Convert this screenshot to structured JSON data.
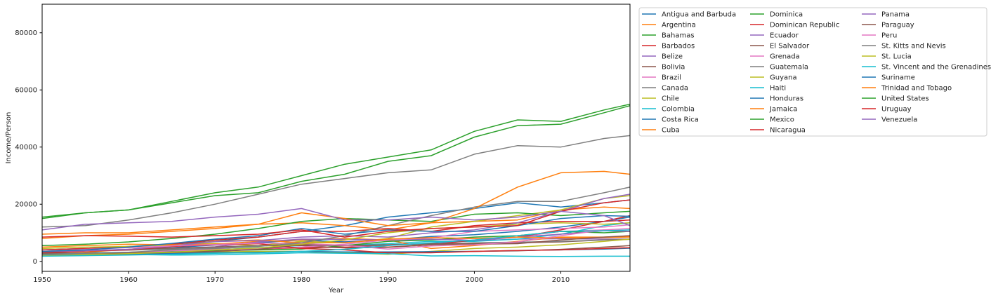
{
  "chart_data": {
    "type": "line",
    "xlabel": "Year",
    "ylabel": "Income/Person",
    "xlim": [
      1950,
      2018
    ],
    "ylim": [
      -3500,
      90000
    ],
    "xticks": [
      1950,
      1960,
      1970,
      1980,
      1990,
      2000,
      2010
    ],
    "yticks": [
      0,
      20000,
      40000,
      60000,
      80000
    ],
    "grid": false,
    "legend_position": "outside-right",
    "legend_columns": 3,
    "years": [
      1950,
      1955,
      1960,
      1965,
      1970,
      1975,
      1980,
      1985,
      1990,
      1995,
      2000,
      2005,
      2010,
      2015,
      2018
    ],
    "series": [
      {
        "name": "Antigua and Barbuda",
        "color": "#1f77b4",
        "values": [
          4000,
          4500,
          5200,
          6000,
          7000,
          8500,
          10500,
          12500,
          15500,
          17000,
          18500,
          20500,
          19000,
          20500,
          21500
        ]
      },
      {
        "name": "Argentina",
        "color": "#ff7f0e",
        "values": [
          9500,
          10000,
          10000,
          11000,
          12000,
          13000,
          13500,
          12500,
          11000,
          13500,
          14000,
          14500,
          18000,
          19000,
          18500
        ]
      },
      {
        "name": "Bahamas",
        "color": "#2ca02c",
        "values": [
          15500,
          17000,
          18000,
          21000,
          24000,
          26000,
          30000,
          34000,
          36500,
          39000,
          45500,
          49500,
          49000,
          53000,
          55000
        ]
      },
      {
        "name": "Barbados",
        "color": "#d62728",
        "values": [
          4000,
          4500,
          5000,
          6000,
          7500,
          8500,
          10500,
          10500,
          11500,
          10500,
          12500,
          13500,
          14000,
          14000,
          14500
        ]
      },
      {
        "name": "Belize",
        "color": "#9467bd",
        "values": [
          2500,
          2700,
          2900,
          3200,
          3600,
          4200,
          5000,
          4800,
          5800,
          6400,
          7200,
          7800,
          7900,
          7800,
          7800
        ]
      },
      {
        "name": "Bolivia",
        "color": "#8c564b",
        "values": [
          3000,
          2800,
          2600,
          2800,
          3100,
          3400,
          3500,
          3000,
          3100,
          3300,
          3500,
          3700,
          4200,
          5000,
          5500
        ]
      },
      {
        "name": "Brazil",
        "color": "#e377c2",
        "values": [
          2000,
          2500,
          3000,
          3300,
          4300,
          5500,
          7000,
          7000,
          7300,
          7500,
          8000,
          8500,
          10500,
          11000,
          10500
        ]
      },
      {
        "name": "Canada",
        "color": "#7f7f7f",
        "values": [
          12000,
          12500,
          14500,
          17000,
          20000,
          23500,
          27000,
          29000,
          31000,
          32000,
          37500,
          40500,
          40000,
          43000,
          44000
        ]
      },
      {
        "name": "Chile",
        "color": "#bcbd22",
        "values": [
          4500,
          5000,
          5200,
          5700,
          6300,
          5500,
          7000,
          6500,
          8000,
          12000,
          14000,
          16000,
          18000,
          22000,
          23000
        ]
      },
      {
        "name": "Colombia",
        "color": "#17becf",
        "values": [
          2700,
          3000,
          3200,
          3500,
          4000,
          4800,
          5500,
          5600,
          6200,
          7000,
          7000,
          7800,
          9500,
          12500,
          13500
        ]
      },
      {
        "name": "Costa Rica",
        "color": "#1f77b4",
        "values": [
          3200,
          3800,
          4200,
          4800,
          5700,
          6500,
          7500,
          6800,
          7500,
          8700,
          9300,
          10500,
          12000,
          14000,
          15500
        ]
      },
      {
        "name": "Cuba",
        "color": "#ff7f0e",
        "values": [
          5000,
          5500,
          6000,
          5800,
          6000,
          7000,
          7500,
          8000,
          7500,
          4500,
          5500,
          7000,
          8500,
          8500,
          8800
        ]
      },
      {
        "name": "Dominica",
        "color": "#2ca02c",
        "values": [
          2500,
          2700,
          3000,
          3300,
          3700,
          4000,
          4300,
          5500,
          7000,
          7500,
          8500,
          9000,
          10500,
          10000,
          10500
        ]
      },
      {
        "name": "Dominican Republic",
        "color": "#d62728",
        "values": [
          2000,
          2300,
          2700,
          2800,
          3500,
          4300,
          4800,
          5000,
          5000,
          5800,
          7500,
          8500,
          11000,
          14000,
          16000
        ]
      },
      {
        "name": "Ecuador",
        "color": "#9467bd",
        "values": [
          3500,
          3800,
          4200,
          4600,
          5100,
          6800,
          7800,
          7700,
          7500,
          7800,
          7300,
          8500,
          9500,
          10700,
          10500
        ]
      },
      {
        "name": "El Salvador",
        "color": "#8c564b",
        "values": [
          3500,
          3800,
          4000,
          4600,
          5000,
          5500,
          5500,
          4700,
          4900,
          5800,
          6200,
          6500,
          6800,
          7500,
          7800
        ]
      },
      {
        "name": "Grenada",
        "color": "#e377c2",
        "values": [
          2500,
          2800,
          3200,
          3700,
          4100,
          4400,
          5000,
          6000,
          7500,
          8200,
          10500,
          11000,
          11500,
          12000,
          12800
        ]
      },
      {
        "name": "Guatemala",
        "color": "#7f7f7f",
        "values": [
          3500,
          3700,
          3900,
          4300,
          4800,
          5400,
          6100,
          5500,
          5600,
          6100,
          6500,
          6700,
          7000,
          7500,
          7700
        ]
      },
      {
        "name": "Guyana",
        "color": "#bcbd22",
        "values": [
          2500,
          2700,
          3000,
          3000,
          3300,
          3500,
          3500,
          3000,
          2500,
          3500,
          4500,
          5000,
          5800,
          7000,
          7800
        ]
      },
      {
        "name": "Haiti",
        "color": "#17becf",
        "values": [
          2200,
          2400,
          2400,
          2200,
          2300,
          2600,
          3000,
          2800,
          2700,
          1900,
          2000,
          1800,
          1700,
          1800,
          1800
        ]
      },
      {
        "name": "Honduras",
        "color": "#1f77b4",
        "values": [
          2200,
          2300,
          2500,
          2700,
          3000,
          3100,
          3500,
          3300,
          3300,
          3400,
          3500,
          3800,
          4000,
          4300,
          4600
        ]
      },
      {
        "name": "Jamaica",
        "color": "#ff7f0e",
        "values": [
          2500,
          3200,
          4200,
          5500,
          7000,
          7500,
          6500,
          6500,
          7800,
          8300,
          8000,
          8500,
          8200,
          8300,
          8500
        ]
      },
      {
        "name": "Mexico",
        "color": "#2ca02c",
        "values": [
          5500,
          6000,
          6800,
          8000,
          9500,
          11500,
          14000,
          15000,
          14500,
          14000,
          16500,
          17000,
          16000,
          17000,
          17500
        ]
      },
      {
        "name": "Nicaragua",
        "color": "#d62728",
        "values": [
          3000,
          3600,
          4000,
          5200,
          5800,
          6200,
          4500,
          4000,
          3000,
          3000,
          3500,
          3800,
          4000,
          4500,
          4800
        ]
      },
      {
        "name": "Panama",
        "color": "#9467bd",
        "values": [
          3500,
          3700,
          4200,
          5400,
          6900,
          7300,
          8500,
          9000,
          8500,
          10000,
          11000,
          13500,
          17500,
          22000,
          23500
        ]
      },
      {
        "name": "Paraguay",
        "color": "#8c564b",
        "values": [
          2800,
          2900,
          2900,
          3100,
          3500,
          4200,
          5800,
          5500,
          5800,
          6200,
          6000,
          6200,
          7500,
          8500,
          9000
        ]
      },
      {
        "name": "Peru",
        "color": "#e377c2",
        "values": [
          3500,
          4200,
          4800,
          5400,
          5900,
          6400,
          6300,
          5600,
          4300,
          5400,
          5800,
          6800,
          9000,
          11000,
          11500
        ]
      },
      {
        "name": "St. Kitts and Nevis",
        "color": "#7f7f7f",
        "values": [
          2500,
          2800,
          3200,
          4000,
          4500,
          5200,
          6500,
          9000,
          12500,
          16000,
          19000,
          21000,
          21000,
          24000,
          26000
        ]
      },
      {
        "name": "St. Lucia",
        "color": "#bcbd22",
        "values": [
          2000,
          2300,
          2700,
          3200,
          4000,
          4700,
          6000,
          7500,
          10000,
          11500,
          12000,
          13000,
          13500,
          13000,
          13500
        ]
      },
      {
        "name": "St. Vincent and the Grenadines",
        "color": "#17becf",
        "values": [
          1800,
          2000,
          2200,
          2500,
          2800,
          3000,
          3500,
          4200,
          5500,
          6500,
          7500,
          9000,
          10500,
          10700,
          11000
        ]
      },
      {
        "name": "Suriname",
        "color": "#1f77b4",
        "values": [
          3500,
          4000,
          5000,
          6300,
          7800,
          9000,
          11500,
          9500,
          11000,
          10500,
          10500,
          12500,
          15000,
          16000,
          15800
        ]
      },
      {
        "name": "Trinidad and Tobago",
        "color": "#ff7f0e",
        "values": [
          8000,
          9000,
          9500,
          10500,
          11500,
          13000,
          17000,
          15000,
          12500,
          13500,
          18500,
          26000,
          31000,
          31500,
          30500
        ]
      },
      {
        "name": "United States",
        "color": "#2ca02c",
        "values": [
          15000,
          17000,
          18000,
          20500,
          23000,
          24000,
          28000,
          30500,
          35000,
          37000,
          43500,
          47500,
          48000,
          52000,
          54500
        ]
      },
      {
        "name": "Uruguay",
        "color": "#d62728",
        "values": [
          8500,
          9000,
          8800,
          8500,
          9000,
          9500,
          11000,
          8500,
          10500,
          11500,
          12000,
          12500,
          17500,
          20500,
          21500
        ]
      },
      {
        "name": "Venezuela",
        "color": "#9467bd",
        "values": [
          11000,
          13000,
          13500,
          14000,
          15500,
          16500,
          18500,
          14500,
          14500,
          15500,
          14500,
          15500,
          17500,
          16000,
          12500
        ]
      }
    ]
  }
}
